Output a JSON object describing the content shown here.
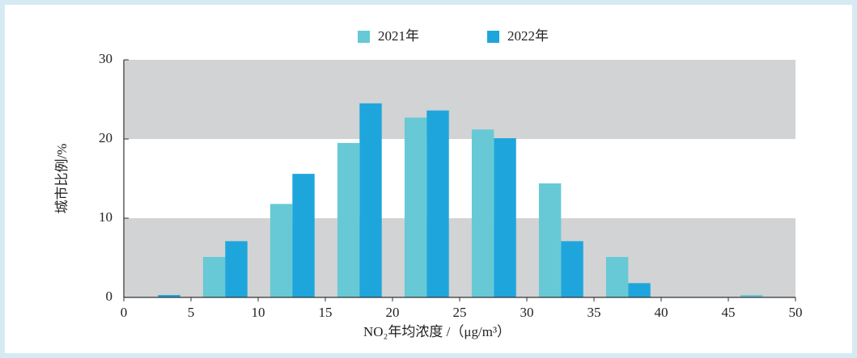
{
  "chart_data": {
    "type": "grouped-histogram",
    "bins": [
      0,
      5,
      10,
      15,
      20,
      25,
      30,
      35,
      40,
      45,
      50
    ],
    "series": [
      {
        "name": "2021年",
        "color": "#67c9d5",
        "values": [
          0,
          5.1,
          11.8,
          19.5,
          22.7,
          21.2,
          14.4,
          5.1,
          0,
          0.3
        ]
      },
      {
        "name": "2022年",
        "color": "#1ea6dc",
        "values": [
          0.3,
          7.1,
          15.6,
          24.5,
          23.6,
          20.1,
          7.1,
          1.8,
          0,
          0
        ]
      }
    ],
    "xlabel": "NO₂年均浓度 /（μg/m³）",
    "ylabel": "城市比例/%",
    "xlim": [
      0,
      50
    ],
    "xticks": [
      0,
      5,
      10,
      15,
      20,
      25,
      30,
      35,
      40,
      45,
      50
    ],
    "ylim": [
      0,
      30
    ],
    "yticks": [
      0,
      10,
      20,
      30
    ],
    "grid": true,
    "band_color": "#d1d3d4",
    "legend": "top"
  }
}
